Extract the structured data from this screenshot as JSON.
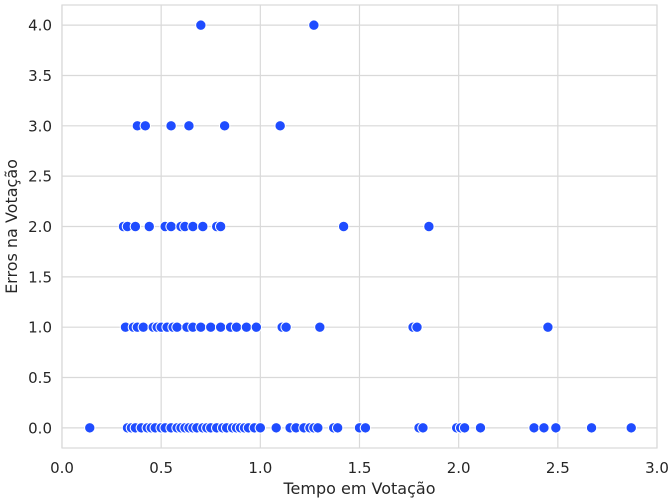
{
  "chart_data": {
    "type": "scatter",
    "xlabel": "Tempo em Votação",
    "ylabel": "Erros na Votação",
    "xlim": [
      0.0,
      3.0
    ],
    "ylim": [
      -0.2,
      4.2
    ],
    "xticks": [
      "0.0",
      "0.5",
      "1.0",
      "1.5",
      "2.0",
      "2.5",
      "3.0"
    ],
    "yticks": [
      "0.0",
      "0.5",
      "1.0",
      "1.5",
      "2.0",
      "2.5",
      "3.0",
      "3.5",
      "4.0"
    ],
    "xtick_values": [
      0.0,
      0.5,
      1.0,
      1.5,
      2.0,
      2.5,
      3.0
    ],
    "ytick_values": [
      0.0,
      0.5,
      1.0,
      1.5,
      2.0,
      2.5,
      3.0,
      3.5,
      4.0
    ],
    "grid": true,
    "colors": {
      "points": "#1f4cff",
      "point_edge": "#ffffff",
      "grid": "#d9d9d9",
      "background": "#ffffff"
    },
    "points": [
      {
        "x": 0.14,
        "y": 0
      },
      {
        "x": 0.33,
        "y": 0
      },
      {
        "x": 0.35,
        "y": 0
      },
      {
        "x": 0.37,
        "y": 0
      },
      {
        "x": 0.4,
        "y": 0
      },
      {
        "x": 0.43,
        "y": 0
      },
      {
        "x": 0.45,
        "y": 0
      },
      {
        "x": 0.47,
        "y": 0
      },
      {
        "x": 0.5,
        "y": 0
      },
      {
        "x": 0.52,
        "y": 0
      },
      {
        "x": 0.55,
        "y": 0
      },
      {
        "x": 0.58,
        "y": 0
      },
      {
        "x": 0.6,
        "y": 0
      },
      {
        "x": 0.62,
        "y": 0
      },
      {
        "x": 0.64,
        "y": 0
      },
      {
        "x": 0.66,
        "y": 0
      },
      {
        "x": 0.68,
        "y": 0
      },
      {
        "x": 0.71,
        "y": 0
      },
      {
        "x": 0.73,
        "y": 0
      },
      {
        "x": 0.75,
        "y": 0
      },
      {
        "x": 0.78,
        "y": 0
      },
      {
        "x": 0.81,
        "y": 0
      },
      {
        "x": 0.83,
        "y": 0
      },
      {
        "x": 0.86,
        "y": 0
      },
      {
        "x": 0.88,
        "y": 0
      },
      {
        "x": 0.9,
        "y": 0
      },
      {
        "x": 0.92,
        "y": 0
      },
      {
        "x": 0.94,
        "y": 0
      },
      {
        "x": 0.97,
        "y": 0
      },
      {
        "x": 1.0,
        "y": 0
      },
      {
        "x": 1.08,
        "y": 0
      },
      {
        "x": 1.15,
        "y": 0
      },
      {
        "x": 1.18,
        "y": 0
      },
      {
        "x": 1.22,
        "y": 0
      },
      {
        "x": 1.25,
        "y": 0
      },
      {
        "x": 1.27,
        "y": 0
      },
      {
        "x": 1.29,
        "y": 0
      },
      {
        "x": 1.37,
        "y": 0
      },
      {
        "x": 1.39,
        "y": 0
      },
      {
        "x": 1.5,
        "y": 0
      },
      {
        "x": 1.53,
        "y": 0
      },
      {
        "x": 1.8,
        "y": 0
      },
      {
        "x": 1.82,
        "y": 0
      },
      {
        "x": 1.99,
        "y": 0
      },
      {
        "x": 2.01,
        "y": 0
      },
      {
        "x": 2.03,
        "y": 0
      },
      {
        "x": 2.11,
        "y": 0
      },
      {
        "x": 2.38,
        "y": 0
      },
      {
        "x": 2.43,
        "y": 0
      },
      {
        "x": 2.49,
        "y": 0
      },
      {
        "x": 2.67,
        "y": 0
      },
      {
        "x": 2.87,
        "y": 0
      },
      {
        "x": 0.32,
        "y": 1
      },
      {
        "x": 0.36,
        "y": 1
      },
      {
        "x": 0.38,
        "y": 1
      },
      {
        "x": 0.41,
        "y": 1
      },
      {
        "x": 0.46,
        "y": 1
      },
      {
        "x": 0.48,
        "y": 1
      },
      {
        "x": 0.5,
        "y": 1
      },
      {
        "x": 0.53,
        "y": 1
      },
      {
        "x": 0.56,
        "y": 1
      },
      {
        "x": 0.58,
        "y": 1
      },
      {
        "x": 0.63,
        "y": 1
      },
      {
        "x": 0.66,
        "y": 1
      },
      {
        "x": 0.7,
        "y": 1
      },
      {
        "x": 0.75,
        "y": 1
      },
      {
        "x": 0.8,
        "y": 1
      },
      {
        "x": 0.85,
        "y": 1
      },
      {
        "x": 0.88,
        "y": 1
      },
      {
        "x": 0.93,
        "y": 1
      },
      {
        "x": 0.98,
        "y": 1
      },
      {
        "x": 1.11,
        "y": 1
      },
      {
        "x": 1.13,
        "y": 1
      },
      {
        "x": 1.3,
        "y": 1
      },
      {
        "x": 1.77,
        "y": 1
      },
      {
        "x": 1.79,
        "y": 1
      },
      {
        "x": 2.45,
        "y": 1
      },
      {
        "x": 0.31,
        "y": 2
      },
      {
        "x": 0.33,
        "y": 2
      },
      {
        "x": 0.37,
        "y": 2
      },
      {
        "x": 0.44,
        "y": 2
      },
      {
        "x": 0.52,
        "y": 2
      },
      {
        "x": 0.55,
        "y": 2
      },
      {
        "x": 0.6,
        "y": 2
      },
      {
        "x": 0.62,
        "y": 2
      },
      {
        "x": 0.66,
        "y": 2
      },
      {
        "x": 0.71,
        "y": 2
      },
      {
        "x": 0.78,
        "y": 2
      },
      {
        "x": 0.8,
        "y": 2
      },
      {
        "x": 1.42,
        "y": 2
      },
      {
        "x": 1.85,
        "y": 2
      },
      {
        "x": 0.38,
        "y": 3
      },
      {
        "x": 0.42,
        "y": 3
      },
      {
        "x": 0.55,
        "y": 3
      },
      {
        "x": 0.64,
        "y": 3
      },
      {
        "x": 0.82,
        "y": 3
      },
      {
        "x": 1.1,
        "y": 3
      },
      {
        "x": 0.7,
        "y": 4
      },
      {
        "x": 1.27,
        "y": 4
      }
    ]
  }
}
